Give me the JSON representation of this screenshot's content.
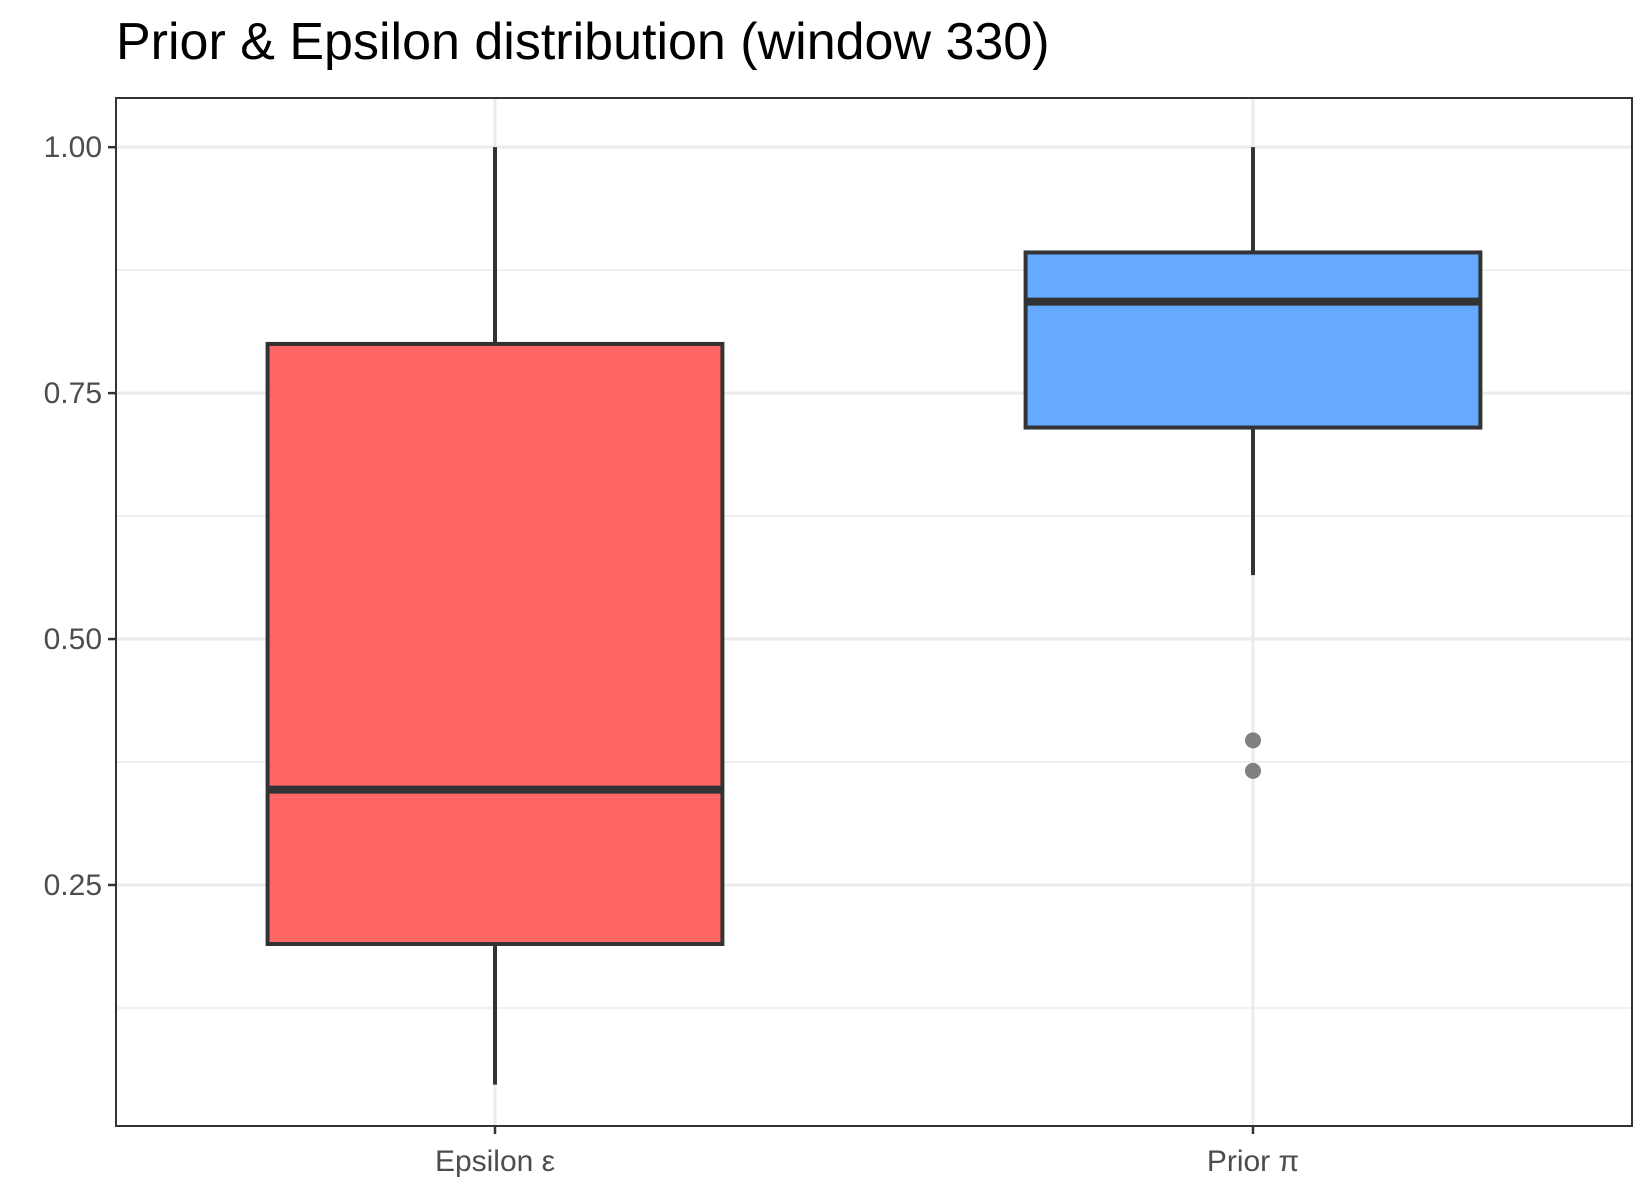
{
  "chart_data": {
    "type": "boxplot",
    "title": "Prior & Epsilon distribution (window 330)",
    "xlabel": "",
    "ylabel": "",
    "ylim": [
      0.005,
      1.05
    ],
    "yticks": [
      0.25,
      0.5,
      0.75,
      1.0
    ],
    "ytick_labels": [
      "0.25",
      "0.50",
      "0.75",
      "1.00"
    ],
    "minor_yticks": [
      0.125,
      0.375,
      0.625,
      0.875
    ],
    "categories": [
      "Epsilon ε",
      "Prior π"
    ],
    "series": [
      {
        "name": "Epsilon ε",
        "color": "#ff6666",
        "whisker_low": 0.047,
        "q1": 0.19,
        "median": 0.347,
        "q3": 0.8,
        "whisker_high": 1.0,
        "outliers": []
      },
      {
        "name": "Prior π",
        "color": "#66aaff",
        "whisker_low": 0.565,
        "q1": 0.715,
        "median": 0.843,
        "q3": 0.893,
        "whisker_high": 1.0,
        "outliers": [
          0.397,
          0.366
        ]
      }
    ]
  }
}
